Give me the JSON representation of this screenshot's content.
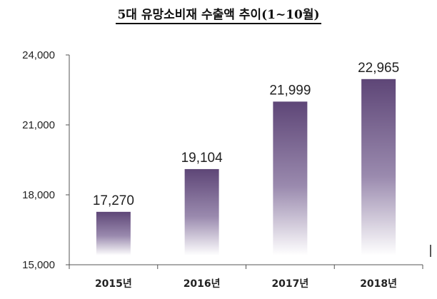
{
  "chart_data": {
    "type": "bar",
    "title": "5대 유망소비재 수출액 추이(1~10월)",
    "categories": [
      "2015년",
      "2016년",
      "2017년",
      "2018년"
    ],
    "values": [
      17270,
      19104,
      21999,
      22965
    ],
    "data_labels": [
      "17,270",
      "19,104",
      "21,999",
      "22,965"
    ],
    "y_ticks": [
      "15,000",
      "18,000",
      "21,000",
      "24,000"
    ],
    "ylim": [
      15000,
      24000
    ],
    "xlabel": "",
    "ylabel": "",
    "grid": false,
    "bar_color": "#5e4677"
  }
}
